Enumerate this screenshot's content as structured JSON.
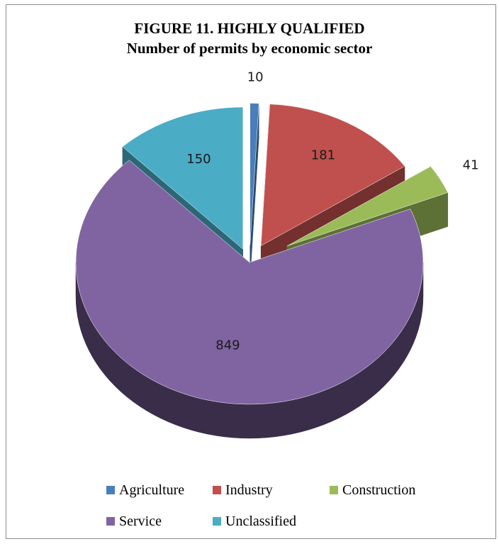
{
  "chart_data": {
    "type": "pie",
    "title": "FIGURE 11. HIGHLY QUALIFIED",
    "subtitle": "Number of permits by economic sector",
    "legend_position": "bottom",
    "slices": [
      {
        "name": "Agriculture",
        "value": 10,
        "color": "#4a7ebb"
      },
      {
        "name": "Industry",
        "value": 181,
        "color": "#c0504d"
      },
      {
        "name": "Construction",
        "value": 41,
        "color": "#9bbb59"
      },
      {
        "name": "Service",
        "value": 849,
        "color": "#8064a2"
      },
      {
        "name": "Unclassified",
        "value": 150,
        "color": "#4bacc6"
      }
    ]
  }
}
